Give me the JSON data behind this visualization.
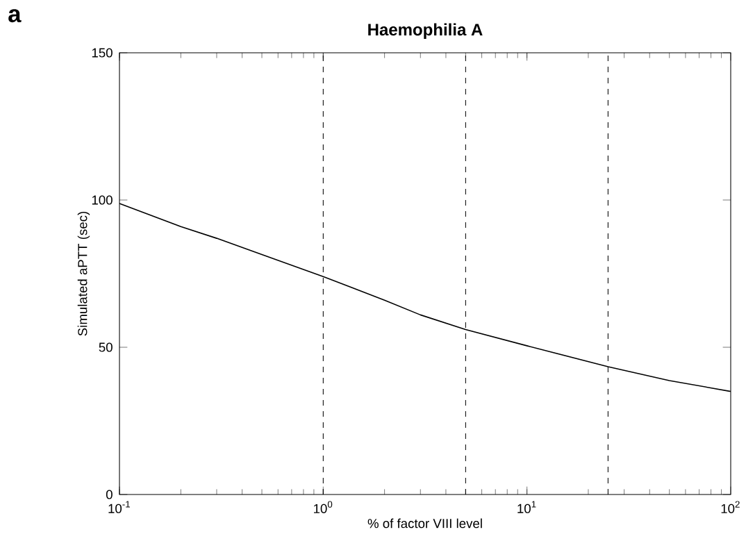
{
  "chart_data": {
    "type": "line",
    "title": "Haemophilia A",
    "xlabel": "% of factor VIII level",
    "ylabel": "Simulated aPTT (sec)",
    "annotations": [
      "a"
    ],
    "log": "x",
    "x": [
      0.1,
      0.2,
      0.3,
      0.5,
      1,
      2,
      3,
      5,
      10,
      25,
      50,
      100
    ],
    "series": [
      {
        "color": "#000000",
        "values": [
          98.8,
          91,
          87,
          81.5,
          74,
          66,
          61,
          56,
          50.5,
          43.4,
          38.7,
          35
        ]
      }
    ],
    "xlim": [
      0.1,
      100
    ],
    "xticks": [
      {
        "value": 0.1,
        "label": "10$^{-1}$"
      },
      {
        "value": 1,
        "label": "10$^{0}$"
      },
      {
        "value": 10,
        "label": "10$^{1}$"
      },
      {
        "value": 100,
        "label": "10$^{2}$"
      }
    ],
    "ylim": [
      0,
      150
    ],
    "yticks": [
      0,
      50,
      100,
      150
    ],
    "ref_lines": [
      {
        "axis": "x",
        "value": 1,
        "color": "#000000",
        "line_style": "dashed"
      },
      {
        "axis": "x",
        "value": 5,
        "color": "#000000",
        "line_style": "dashed"
      },
      {
        "axis": "x",
        "value": 25,
        "color": "#000000",
        "line_style": "dashed"
      }
    ],
    "grid": false,
    "marker": "none",
    "line_style": "solid"
  }
}
